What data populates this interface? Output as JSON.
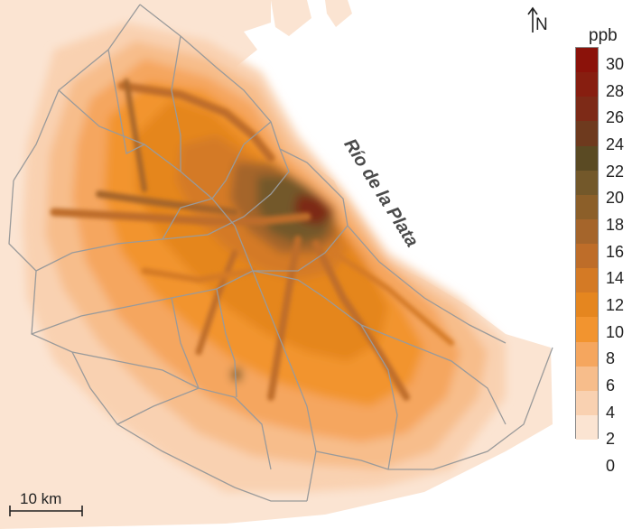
{
  "map": {
    "water_label": "Río de la Plata",
    "north_label": "N",
    "scale_label": "10 km",
    "legend": {
      "unit": "ppb",
      "ticks": [
        "30",
        "28",
        "26",
        "24",
        "22",
        "20",
        "18",
        "16",
        "14",
        "12",
        "10",
        "8",
        "6",
        "4",
        "2",
        "0"
      ],
      "colors": [
        "#fbe4d2",
        "#f9d1b1",
        "#f7bd8b",
        "#f5a65e",
        "#f2942f",
        "#e5861f",
        "#d47a25",
        "#be6d29",
        "#a5652b",
        "#8c5f29",
        "#73582a",
        "#5a4a23",
        "#6e3a1e",
        "#7d2a17",
        "#871e10",
        "#8b120a"
      ]
    },
    "colors": {
      "land_base": "#fbe4d2",
      "water": "#ffffff",
      "boundaries": "#9a9a9a"
    }
  }
}
